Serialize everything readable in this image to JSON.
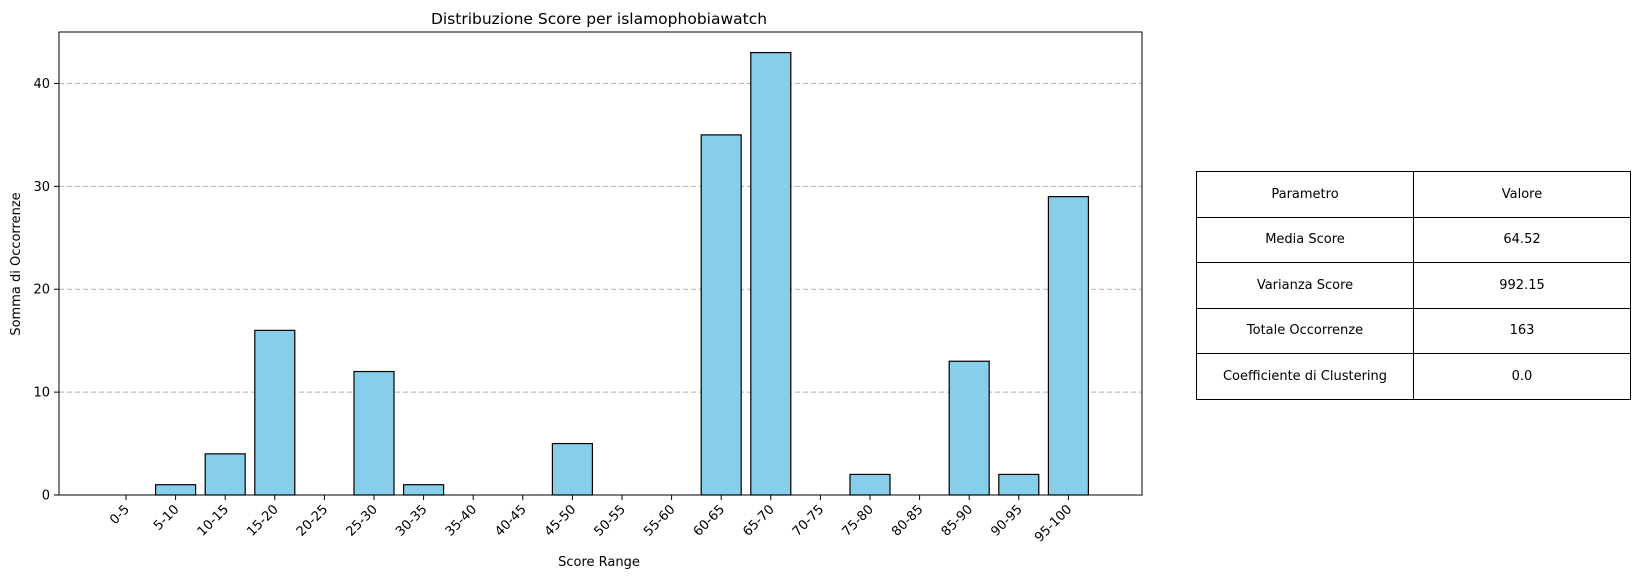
{
  "chart_data": {
    "type": "bar",
    "title": "Distribuzione Score per islamophobiawatch",
    "xlabel": "Score Range",
    "ylabel": "Somma di Occorrenze",
    "categories": [
      "0-5",
      "5-10",
      "10-15",
      "15-20",
      "20-25",
      "25-30",
      "30-35",
      "35-40",
      "40-45",
      "45-50",
      "50-55",
      "55-60",
      "60-65",
      "65-70",
      "70-75",
      "75-80",
      "80-85",
      "85-90",
      "90-95",
      "95-100"
    ],
    "values": [
      0,
      1,
      4,
      16,
      0,
      12,
      1,
      0,
      0,
      5,
      0,
      0,
      35,
      43,
      0,
      2,
      0,
      13,
      2,
      29
    ],
    "ylim": [
      0,
      45
    ],
    "yticks": [
      0,
      10,
      20,
      30,
      40
    ],
    "grid": "y-dashed",
    "bar_color": "#87ceeb",
    "bar_edge_color": "#000000"
  },
  "table": {
    "header": [
      "Parametro",
      "Valore"
    ],
    "rows": [
      [
        "Media Score",
        "64.52"
      ],
      [
        "Varianza Score",
        "992.15"
      ],
      [
        "Totale Occorrenze",
        "163"
      ],
      [
        "Coefficiente di Clustering",
        "0.0"
      ]
    ]
  }
}
